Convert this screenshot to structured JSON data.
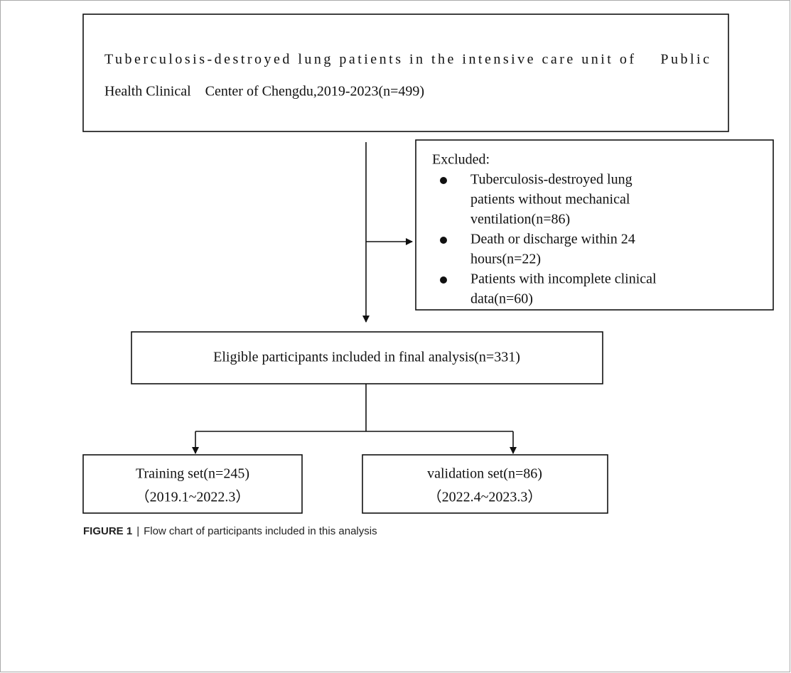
{
  "flowchart": {
    "source": {
      "lines": [
        "Tuberculosis-destroyed lung patients in the intensive care unit of    Public",
        "Health Clinical    Center of Chengdu,2019-2023(n=499)"
      ]
    },
    "excluded": {
      "title": "Excluded:",
      "items": [
        {
          "lines": [
            "Tuberculosis-destroyed lung",
            "patients without mechanical",
            "ventilation(n=86)"
          ]
        },
        {
          "lines": [
            "Death or discharge within 24",
            "hours(n=22)"
          ]
        },
        {
          "lines": [
            "Patients with incomplete clinical",
            "data(n=60)"
          ]
        }
      ]
    },
    "eligible": {
      "lines": [
        "Eligible participants included in final analysis(n=331)"
      ]
    },
    "training": {
      "lines": [
        "Training set(n=245)",
        "（2019.1~2022.3）"
      ]
    },
    "validation": {
      "lines": [
        "validation set(n=86)",
        "（2022.4~2023.3）"
      ]
    }
  },
  "caption": {
    "label": "FIGURE 1",
    "separator": "|",
    "text": "Flow chart of participants included in this analysis"
  }
}
